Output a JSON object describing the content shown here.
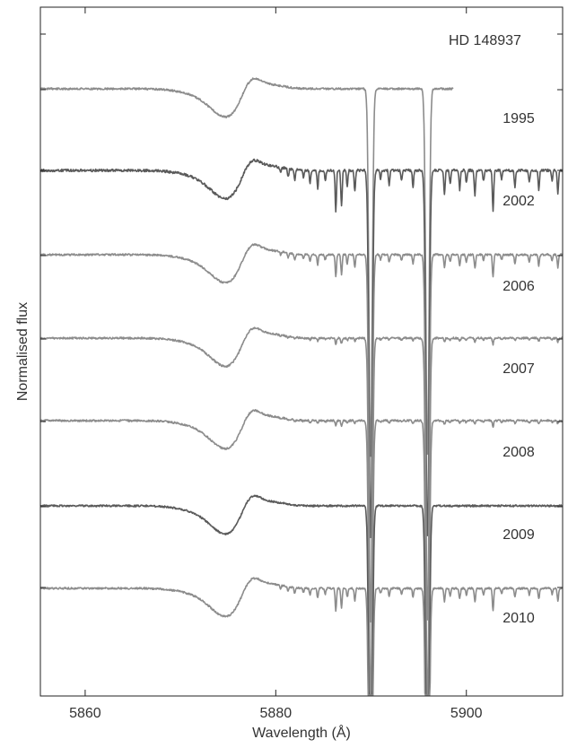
{
  "chart_data": {
    "type": "line",
    "title": "HD 148937",
    "xlabel": "Wavelength (Å)",
    "ylabel": "Normalised flux",
    "xlim": [
      5855.3,
      5910.1
    ],
    "xticks": [
      5860,
      5880,
      5900
    ],
    "tick_labels": [
      "5860",
      "5880",
      "5900"
    ],
    "grid": false,
    "colors": {
      "axis": "#222222",
      "line": "#8c8c8c",
      "line_dark": "#5a5a5a",
      "text": "#333333"
    },
    "series": [
      {
        "name": "1995",
        "x_end": 5898.6,
        "telluric": "none",
        "color": "#8c8c8c"
      },
      {
        "name": "2002",
        "x_end": 5910.1,
        "telluric": "strong",
        "color": "#5a5a5a"
      },
      {
        "name": "2006",
        "x_end": 5910.1,
        "telluric": "medium",
        "color": "#8c8c8c"
      },
      {
        "name": "2007",
        "x_end": 5910.1,
        "telluric": "weak",
        "color": "#8c8c8c"
      },
      {
        "name": "2008",
        "x_end": 5910.1,
        "telluric": "weak",
        "color": "#8c8c8c"
      },
      {
        "name": "2009",
        "x_end": 5910.1,
        "telluric": "none",
        "color": "#5a5a5a"
      },
      {
        "name": "2010",
        "x_end": 5910.1,
        "telluric": "medium",
        "color": "#8c8c8c"
      }
    ],
    "features": {
      "pcygni_absorption_center": 5875.0,
      "pcygni_emission_center": 5877.3,
      "na_d2": 5889.95,
      "na_d1": 5895.92
    }
  }
}
